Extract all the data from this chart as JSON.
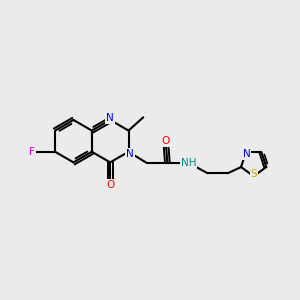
{
  "bg_color": "#ebebeb",
  "bond_color": "#000000",
  "atom_colors": {
    "N": "#0000dd",
    "O": "#ff0000",
    "F": "#dd00dd",
    "S": "#ccaa00",
    "NH": "#008888"
  },
  "figsize": [
    3.0,
    3.0
  ],
  "dpi": 100
}
